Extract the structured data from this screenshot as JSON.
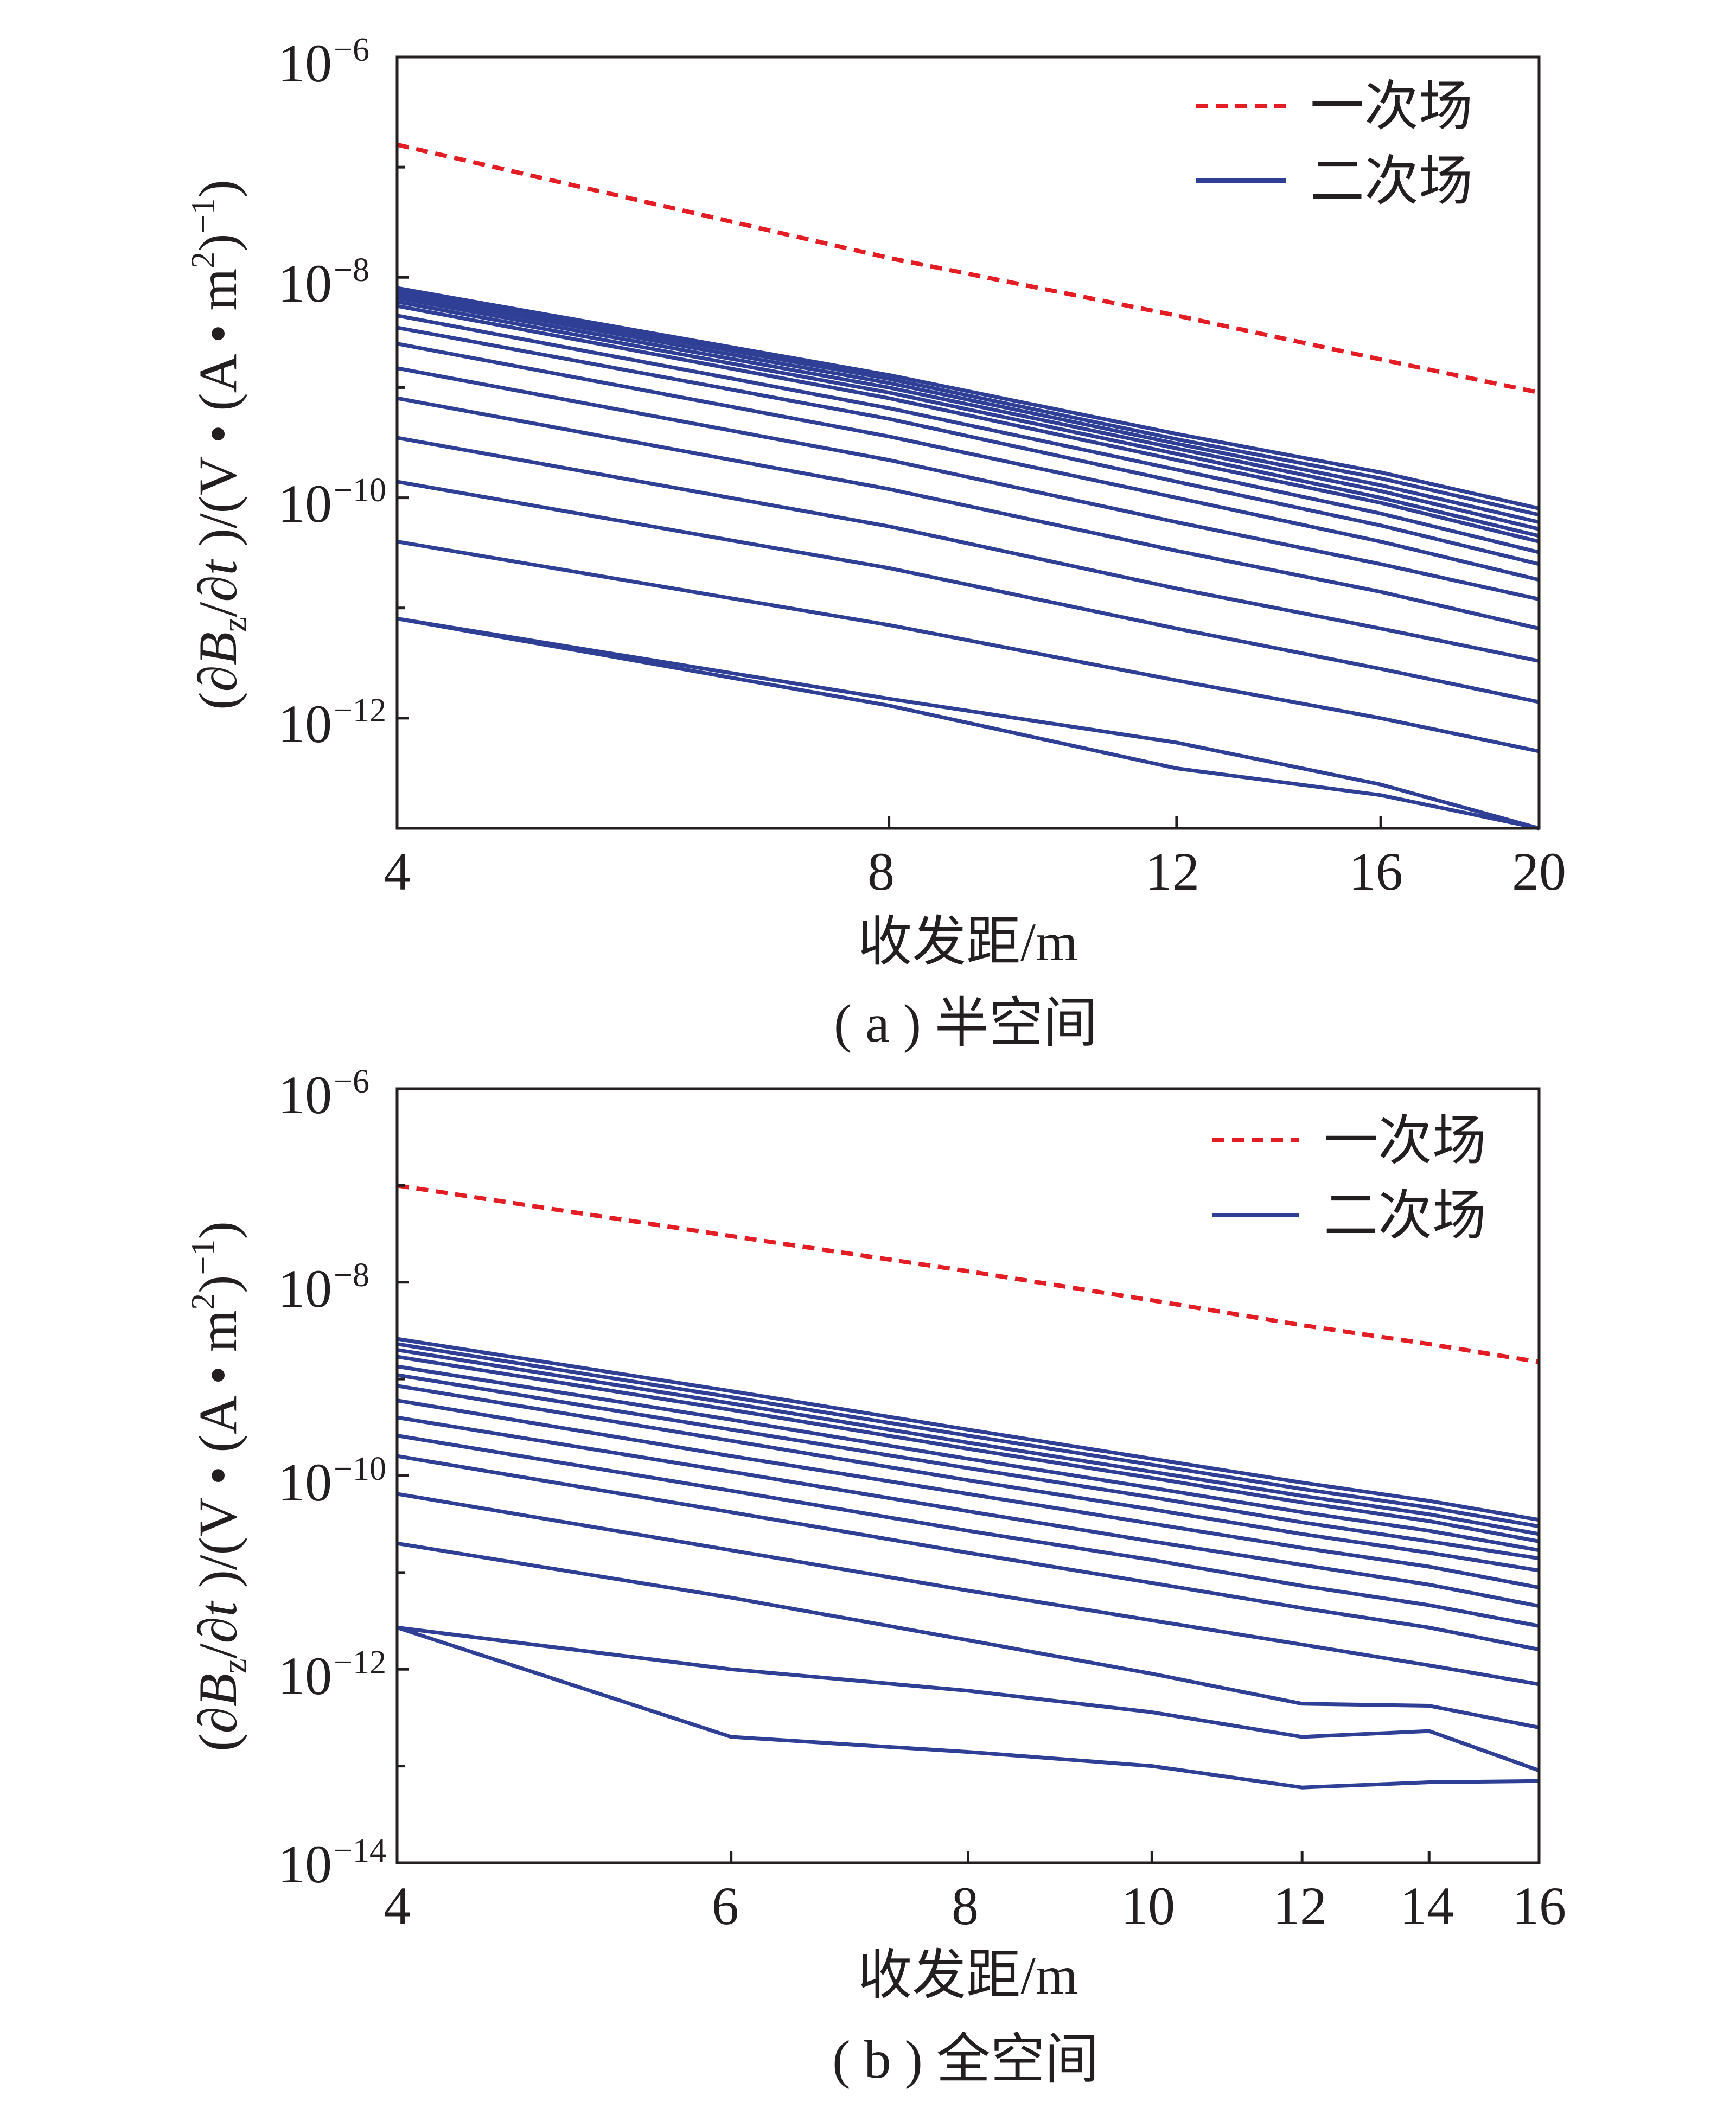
{
  "colors": {
    "primary": "#e31d23",
    "secondary": "#2e3f95",
    "axis": "#231f20"
  },
  "chart_data": [
    {
      "type": "line",
      "caption": "( a ) 半空间",
      "xlabel": "收发距/m",
      "ylabel": "(∂Bz/∂t )/(V • (A • m2)−1)",
      "yscale": "log",
      "xlim": [
        4,
        20
      ],
      "ylim": [
        1e-13,
        1e-06
      ],
      "x_ticks": [
        4,
        8,
        12,
        16,
        20
      ],
      "y_ticks": [
        1e-06,
        1e-08,
        1e-10,
        1e-12
      ],
      "y_tick_exponents": [
        "−6",
        "−8",
        "−10",
        "−12"
      ],
      "legend": {
        "position": "top-right",
        "entries": [
          "一次场",
          "二次场"
        ]
      },
      "x": [
        4,
        8,
        12,
        16,
        20
      ],
      "series": [
        {
          "name": "一次场",
          "style": "dashed",
          "values": [
            1.6e-07,
            1.5e-08,
            4.5e-09,
            1.8e-09,
            9e-10
          ]
        },
        {
          "name": "二次场",
          "style": "solid",
          "values": [
            8e-09,
            1.3e-09,
            3.8e-10,
            1.7e-10,
            8e-11
          ]
        },
        {
          "style": "solid",
          "values": [
            7.5e-09,
            1.2e-09,
            3.4e-10,
            1.5e-10,
            7e-11
          ]
        },
        {
          "style": "solid",
          "values": [
            7e-09,
            1.1e-09,
            3.1e-10,
            1.3e-10,
            6e-11
          ]
        },
        {
          "style": "solid",
          "values": [
            6.5e-09,
            1e-09,
            2.8e-10,
            1.15e-10,
            5.2e-11
          ]
        },
        {
          "style": "solid",
          "values": [
            6e-09,
            9e-10,
            2.5e-10,
            1e-10,
            4.5e-11
          ]
        },
        {
          "style": "solid",
          "values": [
            5.5e-09,
            8e-10,
            2.2e-10,
            9e-11,
            4e-11
          ]
        },
        {
          "style": "solid",
          "values": [
            4.5e-09,
            6.5e-10,
            1.8e-10,
            7.2e-11,
            3.2e-11
          ]
        },
        {
          "style": "solid",
          "values": [
            3.5e-09,
            5.2e-10,
            1.4e-10,
            5.6e-11,
            2.5e-11
          ]
        },
        {
          "style": "solid",
          "values": [
            2.5e-09,
            3.6e-10,
            1e-10,
            4e-11,
            1.8e-11
          ]
        },
        {
          "style": "solid",
          "values": [
            1.5e-09,
            2.2e-10,
            6e-11,
            2.5e-11,
            1.2e-11
          ]
        },
        {
          "style": "solid",
          "values": [
            8e-10,
            1.2e-10,
            3.3e-11,
            1.4e-11,
            6.5e-12
          ]
        },
        {
          "style": "solid",
          "values": [
            3.5e-10,
            5.5e-11,
            1.5e-11,
            6.5e-12,
            3.3e-12
          ]
        },
        {
          "style": "solid",
          "values": [
            1.4e-10,
            2.3e-11,
            6.5e-12,
            2.8e-12,
            1.4e-12
          ]
        },
        {
          "style": "solid",
          "values": [
            4e-11,
            7e-12,
            2.2e-12,
            1e-12,
            5e-13
          ]
        },
        {
          "style": "solid",
          "values": [
            8e-12,
            1.5e-12,
            6e-13,
            2.5e-13,
            1e-13
          ]
        },
        {
          "style": "solid",
          "values": [
            8e-12,
            1.3e-12,
            3.5e-13,
            2e-13,
            1e-13
          ]
        }
      ]
    },
    {
      "type": "line",
      "caption": "( b ) 全空间",
      "xlabel": "收发距/m",
      "ylabel": "(∂Bz/∂t )/(V • (A • m2)−1)",
      "yscale": "log",
      "xlim": [
        4,
        16
      ],
      "ylim": [
        1e-14,
        1e-06
      ],
      "x_ticks": [
        4,
        6,
        8,
        10,
        12,
        14,
        16
      ],
      "y_ticks": [
        1e-06,
        1e-08,
        1e-10,
        1e-12,
        1e-14
      ],
      "y_tick_exponents": [
        "−6",
        "−8",
        "−10",
        "−12",
        "−14"
      ],
      "legend": {
        "position": "top-right",
        "entries": [
          "一次场",
          "二次场"
        ]
      },
      "x": [
        4,
        6,
        8,
        10,
        12,
        14,
        16
      ],
      "series": [
        {
          "name": "一次场",
          "style": "dashed",
          "values": [
            1e-07,
            3e-08,
            1.3e-08,
            6.5e-09,
            3.6e-09,
            2.3e-09,
            1.5e-09
          ]
        },
        {
          "name": "二次场",
          "style": "solid",
          "values": [
            2.6e-09,
            7.5e-10,
            3e-10,
            1.5e-10,
            8.5e-11,
            5.5e-11,
            3.5e-11
          ]
        },
        {
          "style": "solid",
          "values": [
            2.3e-09,
            6.5e-10,
            2.6e-10,
            1.3e-10,
            7.3e-11,
            4.7e-11,
            3e-11
          ]
        },
        {
          "style": "solid",
          "values": [
            2e-09,
            5.6e-10,
            2.2e-10,
            1.1e-10,
            6.2e-11,
            4e-11,
            2.5e-11
          ]
        },
        {
          "style": "solid",
          "values": [
            1.7e-09,
            4.8e-10,
            1.9e-10,
            9.5e-11,
            5.3e-11,
            3.4e-11,
            2.1e-11
          ]
        },
        {
          "style": "solid",
          "values": [
            1.35e-09,
            3.8e-10,
            1.5e-10,
            7.5e-11,
            4.2e-11,
            2.7e-11,
            1.7e-11
          ]
        },
        {
          "style": "solid",
          "values": [
            1.1e-09,
            3e-10,
            1.2e-10,
            6e-11,
            3.3e-11,
            2.1e-11,
            1.4e-11
          ]
        },
        {
          "style": "solid",
          "values": [
            8.5e-10,
            2.3e-10,
            9e-11,
            4.5e-11,
            2.5e-11,
            1.6e-11,
            1.05e-11
          ]
        },
        {
          "style": "solid",
          "values": [
            6e-10,
            1.6e-10,
            6.5e-11,
            3.2e-11,
            1.8e-11,
            1.15e-11,
            7e-12
          ]
        },
        {
          "style": "solid",
          "values": [
            4e-10,
            1.1e-10,
            4.3e-11,
            2.1e-11,
            1.2e-11,
            7.5e-12,
            4.5e-12
          ]
        },
        {
          "style": "solid",
          "values": [
            2.6e-10,
            7e-11,
            2.7e-11,
            1.35e-11,
            7.3e-12,
            4.6e-12,
            2.8e-12
          ]
        },
        {
          "style": "solid",
          "values": [
            1.6e-10,
            4.2e-11,
            1.6e-11,
            7.8e-12,
            4.3e-12,
            2.7e-12,
            1.6e-12
          ]
        },
        {
          "style": "solid",
          "values": [
            6.5e-11,
            1.7e-11,
            6.5e-12,
            3.2e-12,
            1.8e-12,
            1.1e-12,
            7e-13
          ]
        },
        {
          "style": "solid",
          "values": [
            2e-11,
            5.5e-12,
            2e-12,
            9e-13,
            4.4e-13,
            4.2e-13,
            2.5e-13
          ]
        },
        {
          "style": "solid",
          "values": [
            2.7e-12,
            1e-12,
            6e-13,
            3.6e-13,
            2e-13,
            2.3e-13,
            9e-14
          ]
        },
        {
          "style": "solid",
          "values": [
            2.7e-12,
            2e-13,
            1.4e-13,
            1e-13,
            6e-14,
            6.8e-14,
            7e-14
          ]
        }
      ]
    }
  ]
}
